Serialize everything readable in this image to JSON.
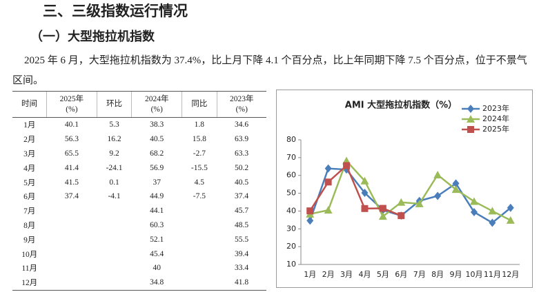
{
  "heading": "三、三级指数运行情况",
  "subheading": "（一）大型拖拉机指数",
  "paragraph": "2025 年 6 月，大型拖拉机指数为 37.4%，比上月下降 4.1 个百分点，比上年同期下降 7.5 个百分点，位于不景气区间。",
  "table": {
    "header": [
      "时间",
      "2025年\n(%)",
      "环比",
      "2024年\n(%)",
      "同比",
      "2023年\n(%)"
    ],
    "rows": [
      [
        "1月",
        40.1,
        5.3,
        38.3,
        1.8,
        34.6
      ],
      [
        "2月",
        56.3,
        16.2,
        40.5,
        15.8,
        63.9
      ],
      [
        "3月",
        65.5,
        9.2,
        68.2,
        -2.7,
        63.3
      ],
      [
        "4月",
        41.4,
        -24.1,
        56.9,
        -15.5,
        50.2
      ],
      [
        "5月",
        41.5,
        0.1,
        37.0,
        4.5,
        40.5
      ],
      [
        "6月",
        37.4,
        -4.1,
        44.9,
        -7.5,
        37.4
      ],
      [
        "7月",
        null,
        null,
        44.1,
        null,
        45.7
      ],
      [
        "8月",
        null,
        null,
        60.3,
        null,
        48.5
      ],
      [
        "9月",
        null,
        null,
        52.1,
        null,
        55.5
      ],
      [
        "10月",
        null,
        null,
        45.4,
        null,
        39.4
      ],
      [
        "11月",
        null,
        null,
        40.0,
        null,
        33.4
      ],
      [
        "12月",
        null,
        null,
        34.8,
        null,
        41.8
      ]
    ]
  },
  "chart_data": {
    "type": "line",
    "title": "AMI 大型拖拉机指数（%）",
    "categories": [
      "1月",
      "2月",
      "3月",
      "4月",
      "5月",
      "6月",
      "7月",
      "8月",
      "9月",
      "10月",
      "11月",
      "12月"
    ],
    "series": [
      {
        "name": "2023年",
        "color": "#4a7ebb",
        "marker": "diamond",
        "values": [
          34.6,
          63.9,
          63.3,
          50.2,
          40.5,
          37.4,
          45.7,
          48.5,
          55.5,
          39.4,
          33.4,
          41.8
        ]
      },
      {
        "name": "2024年",
        "color": "#9bbb59",
        "marker": "triangle",
        "values": [
          38.3,
          40.5,
          68.2,
          56.9,
          37.0,
          44.9,
          44.1,
          60.3,
          52.1,
          45.4,
          40.0,
          34.8
        ]
      },
      {
        "name": "2025年",
        "color": "#c0504d",
        "marker": "square",
        "values": [
          40.1,
          56.3,
          65.5,
          41.4,
          41.5,
          37.4,
          null,
          null,
          null,
          null,
          null,
          null
        ]
      }
    ],
    "ylim": [
      10,
      80
    ],
    "yticks": [
      10,
      20,
      30,
      40,
      50,
      60,
      70,
      80
    ],
    "grid": false,
    "legend": "top-right"
  }
}
